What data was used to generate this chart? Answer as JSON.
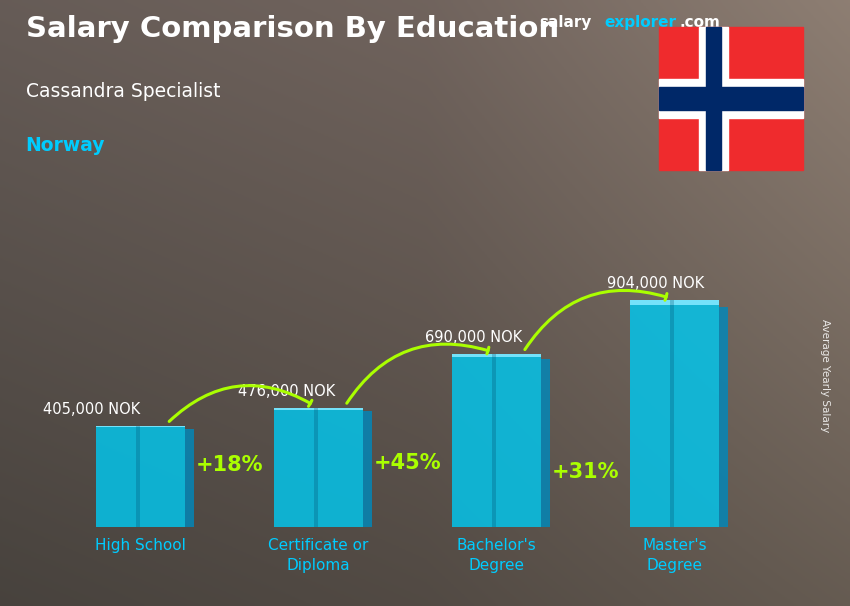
{
  "title": "Salary Comparison By Education",
  "subtitle": "Cassandra Specialist",
  "country": "Norway",
  "ylabel": "Average Yearly Salary",
  "categories": [
    "High School",
    "Certificate or\nDiploma",
    "Bachelor's\nDegree",
    "Master's\nDegree"
  ],
  "values": [
    405000,
    476000,
    690000,
    904000
  ],
  "value_labels": [
    "405,000 NOK",
    "476,000 NOK",
    "690,000 NOK",
    "904,000 NOK"
  ],
  "pct_labels": [
    "+18%",
    "+45%",
    "+31%"
  ],
  "bar_color_main": "#00c8f0",
  "bar_color_side": "#0088bb",
  "bar_color_top": "#80e8ff",
  "bar_alpha": 0.82,
  "bg_colors": [
    "#3a3a3a",
    "#505050",
    "#4a4a4a",
    "#3a3a3a"
  ],
  "title_color": "#ffffff",
  "subtitle_color": "#ffffff",
  "country_color": "#00ccff",
  "value_label_color": "#ffffff",
  "pct_color": "#aaff00",
  "xlabel_color": "#00ccff",
  "site_salary_color": "#ffffff",
  "site_explorer_color": "#00ccff",
  "site_com_color": "#ffffff",
  "flag_red": "#EF2B2D",
  "flag_blue": "#002868",
  "flag_white": "#ffffff",
  "figsize": [
    8.5,
    6.06
  ],
  "dpi": 100,
  "ylim_max_factor": 1.55
}
